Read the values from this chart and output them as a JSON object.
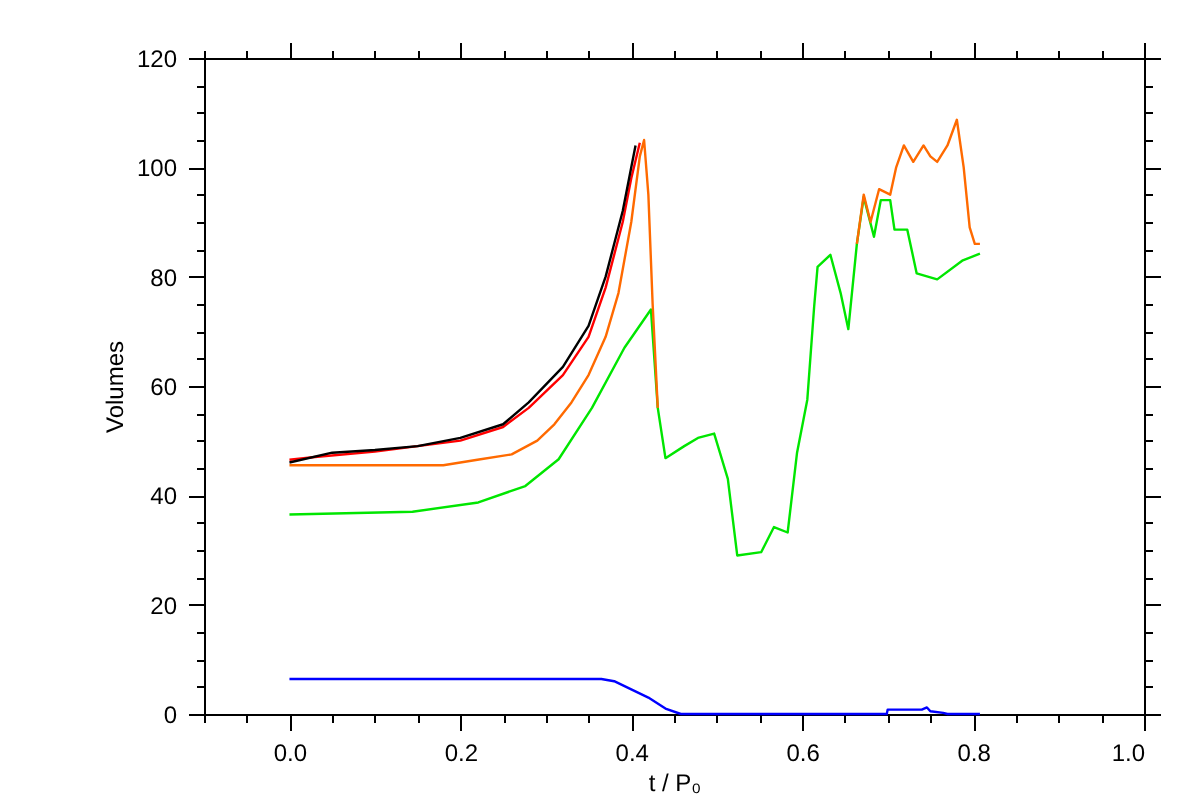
{
  "chart_data": {
    "type": "line",
    "xlabel": "t / P₀",
    "ylabel": "Volumes",
    "xlim": [
      -0.1,
      1.0
    ],
    "ylim": [
      0,
      120
    ],
    "xticks": [
      {
        "value": -0.1,
        "label": null
      },
      {
        "value": -0.05,
        "label": null
      },
      {
        "value": 0.0,
        "label": "0.0"
      },
      {
        "value": 0.05,
        "label": null
      },
      {
        "value": 0.1,
        "label": null
      },
      {
        "value": 0.15,
        "label": null
      },
      {
        "value": 0.2,
        "label": "0.2"
      },
      {
        "value": 0.25,
        "label": null
      },
      {
        "value": 0.3,
        "label": null
      },
      {
        "value": 0.35,
        "label": null
      },
      {
        "value": 0.4,
        "label": "0.4"
      },
      {
        "value": 0.45,
        "label": null
      },
      {
        "value": 0.5,
        "label": null
      },
      {
        "value": 0.55,
        "label": null
      },
      {
        "value": 0.6,
        "label": "0.6"
      },
      {
        "value": 0.65,
        "label": null
      },
      {
        "value": 0.7,
        "label": null
      },
      {
        "value": 0.75,
        "label": null
      },
      {
        "value": 0.8,
        "label": "0.8"
      },
      {
        "value": 0.85,
        "label": null
      },
      {
        "value": 0.9,
        "label": null
      },
      {
        "value": 0.95,
        "label": null
      },
      {
        "value": 1.0,
        "label": "1.0"
      }
    ],
    "yticks": [
      0,
      {
        "value": 5,
        "label": null
      },
      {
        "value": 10,
        "label": null
      },
      {
        "value": 15,
        "label": null
      },
      20,
      {
        "value": 25,
        "label": null
      },
      {
        "value": 30,
        "label": null
      },
      {
        "value": 35,
        "label": null
      },
      40,
      {
        "value": 45,
        "label": null
      },
      {
        "value": 50,
        "label": null
      },
      {
        "value": 55,
        "label": null
      },
      60,
      {
        "value": 65,
        "label": null
      },
      {
        "value": 70,
        "label": null
      },
      {
        "value": 75,
        "label": null
      },
      80,
      {
        "value": 85,
        "label": null
      },
      {
        "value": 90,
        "label": null
      },
      {
        "value": 95,
        "label": null
      },
      100,
      {
        "value": 105,
        "label": null
      },
      {
        "value": 110,
        "label": null
      },
      {
        "value": 115,
        "label": null
      },
      120
    ],
    "grid": false,
    "marker": "none",
    "line_style": "solid",
    "series": [
      {
        "color": "#00e600",
        "x": [
          0.0,
          0.144,
          0.221,
          0.276,
          0.315,
          0.354,
          0.392,
          0.423,
          0.431,
          0.44,
          0.462,
          0.478,
          0.497,
          0.513,
          0.524,
          0.552,
          0.567,
          0.583,
          0.594,
          0.606,
          0.614,
          0.618,
          0.633,
          0.645,
          0.654,
          0.664,
          0.672,
          0.684,
          0.692,
          0.703,
          0.708,
          0.723,
          0.734,
          0.758,
          0.788,
          0.808
        ],
        "values": [
          36.5,
          37,
          38.7,
          41.7,
          46.6,
          56,
          67,
          74,
          56,
          46.8,
          49,
          50.5,
          51.3,
          43,
          29,
          29.6,
          34.2,
          33.2,
          47.8,
          57.5,
          74.5,
          81.8,
          84,
          77,
          70.4,
          86,
          94.6,
          87.3,
          94,
          94,
          88.6,
          88.6,
          80.6,
          79.5,
          83,
          84.2
        ]
      },
      {
        "color": "#ff6a00",
        "x": [
          0.0,
          0.02,
          0.18,
          0.22,
          0.26,
          0.29,
          0.31,
          0.33,
          0.35,
          0.37,
          0.385,
          0.4,
          0.41,
          0.415,
          0.42,
          0.425,
          0.431,
          0.55,
          0.664,
          0.672,
          0.68,
          0.69,
          0.703,
          0.71,
          0.719,
          0.73,
          0.742,
          0.75,
          0.758,
          0.77,
          0.781,
          0.789,
          0.796,
          0.802,
          0.808
        ],
        "values": [
          45.5,
          45.5,
          45.5,
          46.5,
          47.5,
          50,
          53,
          57,
          62,
          69,
          77,
          90,
          102,
          105,
          95,
          75,
          56,
          null,
          86,
          95,
          90,
          96,
          95,
          100,
          104,
          101,
          104,
          102,
          101,
          104,
          108.7,
          100,
          89,
          86,
          86
        ]
      },
      {
        "color": "#ff0000",
        "x": [
          0.0,
          0.03,
          0.1,
          0.2,
          0.25,
          0.28,
          0.32,
          0.35,
          0.37,
          0.39,
          0.4,
          0.41
        ],
        "values": [
          46.5,
          47,
          48,
          50,
          52.5,
          56,
          62,
          69,
          78,
          90,
          98,
          104.5
        ]
      },
      {
        "color": "#000000",
        "x": [
          0.0,
          0.05,
          0.1,
          0.15,
          0.2,
          0.25,
          0.28,
          0.32,
          0.35,
          0.37,
          0.39,
          0.4,
          0.405
        ],
        "values": [
          46,
          47.8,
          48.3,
          49,
          50.5,
          53,
          57,
          63.5,
          71,
          80,
          92,
          100,
          104
        ]
      },
      {
        "color": "#0000ff",
        "x": [
          0.0,
          0.365,
          0.38,
          0.4,
          0.42,
          0.44,
          0.458,
          0.699,
          0.7,
          0.74,
          0.746,
          0.75,
          0.765,
          0.77,
          0.808
        ],
        "values": [
          6.4,
          6.4,
          6,
          4.5,
          3,
          1,
          0,
          0,
          0.8,
          0.8,
          1.2,
          0.5,
          0.2,
          0,
          0
        ]
      }
    ]
  }
}
